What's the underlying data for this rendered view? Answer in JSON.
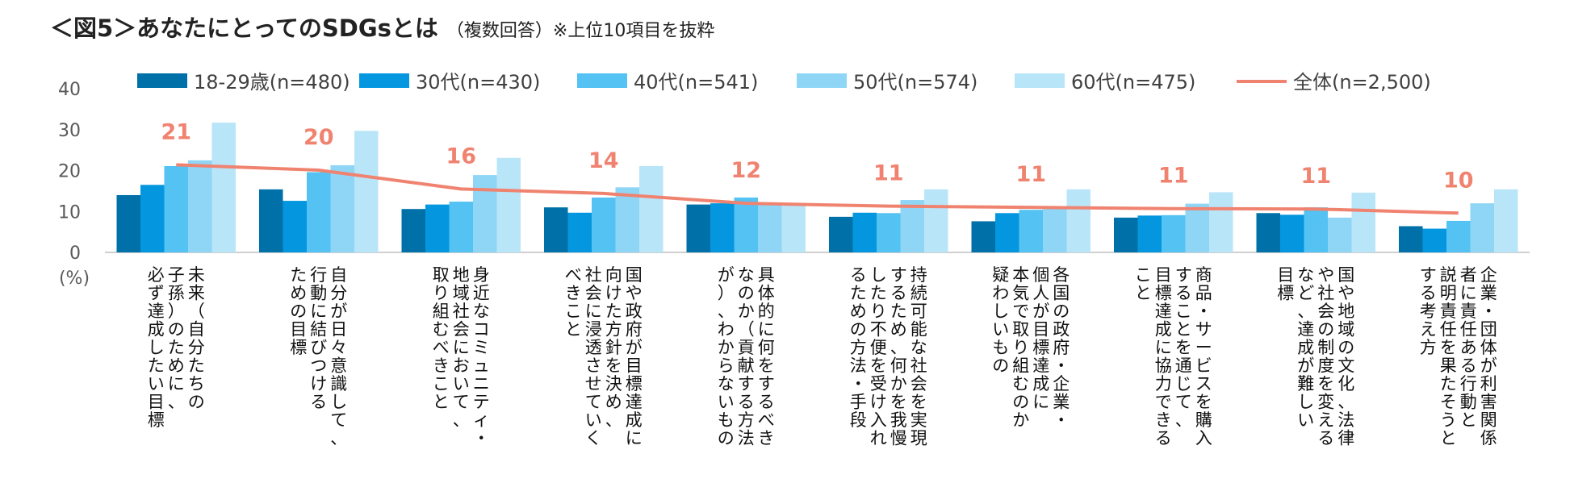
{
  "title": {
    "main": "＜図5＞あなたにとってのSDGsとは",
    "sub": "（複数回答）※上位10項目を抜粋"
  },
  "chart_data": {
    "type": "bar",
    "unit_label": "(%)",
    "ylim": [
      0,
      40
    ],
    "yticks": [
      0,
      10,
      20,
      30,
      40
    ],
    "categories": [
      "未来（自分たちの子孫）のために、必ず達成したい目標",
      "自分が日々意識して、行動に結びつけるための目標",
      "身近なコミュニティ・地域社会において、取り組むべきこと",
      "国や政府が目標達成に向けた方針を決め、社会に浸透させていくべきこと",
      "具体的に何をするべきなのか（貢献する方法が）、わからないもの",
      "持続可能な社会を実現するため、何かを我慢したり不便を受け入れるための方法・手段",
      "各国の政府・企業・個人が目標達成に本気で取り組むのか疑わしいもの",
      "商品・サービスを購入することを通じて、目標達成に協力できること",
      "国や地域の文化、法律や社会の制度を変えるなど、達成が難しい目標",
      "企業・団体が利害関係者に責任ある行動と説明責任を果たそうとする考え方"
    ],
    "category_lines": [
      [
        "未来（自分たちの",
        "子孫）のために、",
        "必ず達成したい目標"
      ],
      [
        "自分が日々意識して、",
        "行動に結びつける",
        "ための目標"
      ],
      [
        "身近なコミュニティ・",
        "地域社会において、",
        "取り組むべきこと"
      ],
      [
        "国や政府が目標達成に",
        "向けた方針を決め、",
        "社会に浸透させていく",
        "べきこと"
      ],
      [
        "具体的に何をするべき",
        "なのか（貢献する方法",
        "が）、わからないもの"
      ],
      [
        "持続可能な社会を実現",
        "するため、何かを我慢",
        "したり不便を受け入れ",
        "るための方法・手段"
      ],
      [
        "各国の政府・企業・",
        "個人が目標達成に",
        "本気で取り組むのか",
        "疑わしいもの"
      ],
      [
        "商品・サービスを購入",
        "することを通じて、",
        "目標達成に協力できる",
        "こと"
      ],
      [
        "国や地域の文化、法律",
        "や社会の制度を変える",
        "など、達成が難しい",
        "目標"
      ],
      [
        "企業・団体が利害関係",
        "者に責任ある行動と",
        "説明責任を果たそうと",
        "する考え方"
      ]
    ],
    "series": [
      {
        "name": "18-29歳(n=480)",
        "color": "#0070A8",
        "values": [
          14.0,
          15.4,
          10.6,
          11.0,
          11.7,
          8.7,
          7.6,
          8.5,
          9.6,
          6.4
        ]
      },
      {
        "name": "30代(n=430)",
        "color": "#0497E0",
        "values": [
          16.5,
          12.6,
          11.7,
          9.7,
          12.0,
          9.7,
          9.6,
          9.0,
          9.2,
          5.8
        ]
      },
      {
        "name": "40代(n=541)",
        "color": "#54C2F2",
        "values": [
          21.1,
          19.6,
          12.4,
          13.4,
          13.4,
          9.6,
          10.4,
          9.1,
          11.0,
          7.7
        ]
      },
      {
        "name": "50代(n=574)",
        "color": "#8FD6F6",
        "values": [
          22.5,
          21.3,
          18.9,
          15.9,
          11.8,
          12.8,
          10.8,
          11.9,
          8.5,
          12.0
        ]
      },
      {
        "name": "60代(n=475)",
        "color": "#B9E5F9",
        "values": [
          31.7,
          29.7,
          23.1,
          21.1,
          11.6,
          15.4,
          15.4,
          14.7,
          14.6,
          15.4
        ]
      }
    ],
    "total": {
      "name": "全体(n=2,500)",
      "color": "#F08370",
      "values": [
        21.4,
        20.1,
        15.5,
        14.4,
        12.0,
        11.3,
        11.0,
        10.7,
        10.6,
        9.6
      ],
      "labels": [
        "21",
        "20",
        "16",
        "14",
        "12",
        "11",
        "11",
        "11",
        "11",
        "10"
      ]
    }
  }
}
